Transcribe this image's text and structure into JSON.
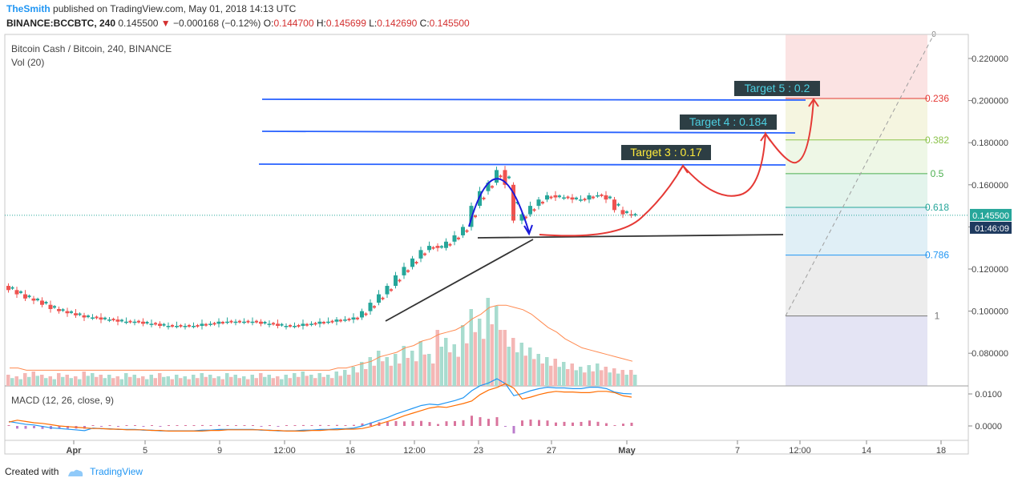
{
  "header": {
    "author": "TheSmith",
    "published_text": "published on TradingView.com, May 01, 2018 14:13 UTC",
    "symbol": "BINANCE:BCCBTC, 240",
    "last": "0.145500",
    "change": "−0.000168 (−0.12%)",
    "o_label": "O:",
    "o": "0.144700",
    "h_label": "H:",
    "h": "0.145699",
    "l_label": "L:",
    "l": "0.142690",
    "c_label": "C:",
    "c": "0.145500"
  },
  "pane_title": "Bitcoin Cash / Bitcoin, 240, BINANCE",
  "vol_label": "Vol (20)",
  "macd_label": "MACD (12, 26, close, 9)",
  "footer": {
    "created_with": "Created with",
    "brand": "TradingView"
  },
  "colors": {
    "up": "#26a69a",
    "down": "#ef5350",
    "target_bg": "#2d3e44",
    "target_yellow": "#ffeb3b",
    "target_cyan": "#4dd0e1",
    "level_line": "#2962ff",
    "arc_red": "#e53935",
    "arc_blue": "#1a1adb"
  },
  "chart_data": {
    "type": "candlestick",
    "title": "Bitcoin Cash / Bitcoin, 240, BINANCE",
    "price_axis": {
      "ticks": [
        "0.220000",
        "0.200000",
        "0.180000",
        "0.160000",
        "0.140000",
        "0.120000",
        "0.100000",
        "0.080000"
      ],
      "tick_values": [
        0.22,
        0.2,
        0.18,
        0.16,
        0.14,
        0.12,
        0.1,
        0.08
      ],
      "range": [
        0.0665,
        0.231
      ]
    },
    "time_axis": {
      "ticks": [
        "Apr",
        "5",
        "9",
        "12:00",
        "16",
        "12:00",
        "23",
        "27",
        "May",
        "7",
        "12:00",
        "14",
        "18"
      ],
      "emphasis": [
        "Apr",
        "May"
      ]
    },
    "last_price_label": "0.145500",
    "countdown_label": "01:46:09",
    "close_path": [
      0.11,
      0.108,
      0.106,
      0.105,
      0.103,
      0.101,
      0.1,
      0.099,
      0.098,
      0.097,
      0.097,
      0.096,
      0.096,
      0.095,
      0.095,
      0.095,
      0.094,
      0.094,
      0.093,
      0.093,
      0.093,
      0.093,
      0.093,
      0.094,
      0.094,
      0.095,
      0.095,
      0.095,
      0.095,
      0.095,
      0.094,
      0.094,
      0.093,
      0.093,
      0.093,
      0.094,
      0.094,
      0.095,
      0.095,
      0.096,
      0.096,
      0.097,
      0.1,
      0.104,
      0.108,
      0.112,
      0.117,
      0.121,
      0.125,
      0.129,
      0.131,
      0.13,
      0.133,
      0.136,
      0.14,
      0.15,
      0.157,
      0.161,
      0.167,
      0.16,
      0.143,
      0.146,
      0.15,
      0.153,
      0.155,
      0.154,
      0.154,
      0.153,
      0.153,
      0.155,
      0.155,
      0.153,
      0.148,
      0.146,
      0.1455
    ],
    "volume_path": [
      7,
      6,
      8,
      9,
      7,
      6,
      8,
      7,
      6,
      9,
      8,
      7,
      7,
      6,
      8,
      7,
      6,
      7,
      8,
      6,
      7,
      6,
      7,
      8,
      7,
      6,
      8,
      7,
      6,
      7,
      8,
      7,
      6,
      7,
      8,
      9,
      7,
      8,
      7,
      9,
      10,
      12,
      15,
      18,
      22,
      18,
      20,
      25,
      22,
      28,
      20,
      35,
      30,
      26,
      38,
      48,
      42,
      55,
      50,
      35,
      30,
      27,
      24,
      20,
      18,
      17,
      15,
      14,
      12,
      13,
      14,
      12,
      11,
      10,
      10
    ],
    "volume_ma_path": [
      8,
      8,
      7,
      7,
      7,
      7,
      7,
      7,
      7,
      7,
      7,
      7,
      7,
      7,
      7,
      7,
      7,
      7,
      7,
      7,
      7,
      7,
      7,
      7,
      7,
      7,
      7,
      7,
      7,
      7,
      7,
      7,
      7,
      7,
      7,
      7,
      7,
      7,
      7,
      8,
      8,
      9,
      10,
      11,
      13,
      14,
      15,
      17,
      18,
      20,
      21,
      23,
      24,
      25,
      27,
      30,
      32,
      35,
      36,
      36,
      35,
      34,
      32,
      29,
      26,
      24,
      21,
      19,
      17,
      16,
      15,
      14,
      13,
      12,
      11
    ],
    "levels": [
      {
        "name": "Target 3 : 0.17",
        "value": 0.17
      },
      {
        "name": "Target 4 : 0.184",
        "value": 0.184
      },
      {
        "name": "Target 5 : 0.2",
        "value": 0.2
      }
    ],
    "neckline_value": 0.1375,
    "fibonacci": [
      {
        "label": "0.236",
        "value": 0.201,
        "color": "#e53935"
      },
      {
        "label": "0.382",
        "value": 0.1813,
        "color": "#8bc34a"
      },
      {
        "label": "0.5",
        "value": 0.1653,
        "color": "#4caf50"
      },
      {
        "label": "0.618",
        "value": 0.1493,
        "color": "#26a69a"
      },
      {
        "label": "0.786",
        "value": 0.1266,
        "color": "#2196f3"
      },
      {
        "label": "1",
        "value": 0.0977,
        "color": "#777777"
      }
    ],
    "macd": {
      "ticks": [
        "0.0100",
        "0.0000"
      ],
      "tick_values": [
        0.01,
        0.0
      ],
      "range": [
        -0.004,
        0.012
      ]
    }
  }
}
